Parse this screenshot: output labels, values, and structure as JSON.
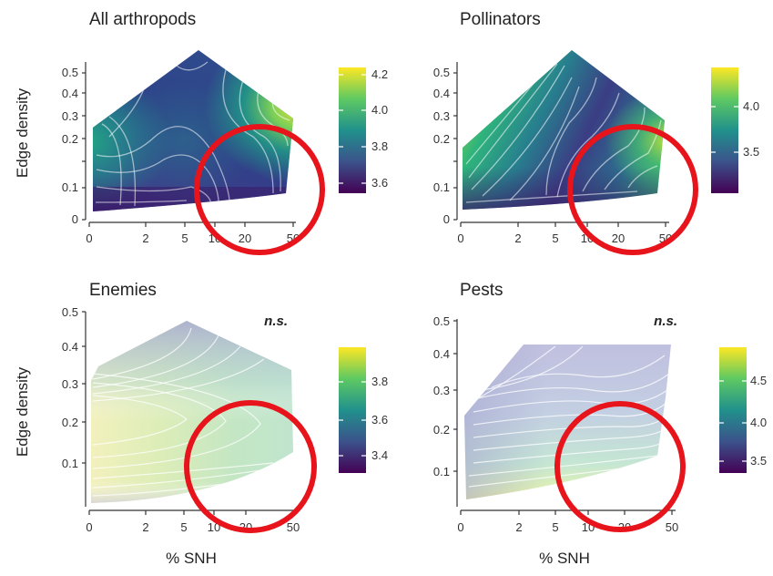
{
  "chart_data": [
    {
      "type": "contour",
      "title": "All arthropods",
      "xlabel": "",
      "ylabel": "Edge density",
      "x_ticks": [
        "0",
        "2",
        "5",
        "10",
        "20",
        "50"
      ],
      "y_ticks": [
        "0",
        "0.1",
        "0.2",
        "0.3",
        "0.4",
        "0.5"
      ],
      "colorbar": {
        "ticks": [
          "4.2",
          "4.0",
          "3.8",
          "3.6"
        ],
        "min": 3.55,
        "max": 4.25
      },
      "annotation": "",
      "grid": false,
      "highlight": "red circle around high % SNH, low edge density"
    },
    {
      "type": "contour",
      "title": "Pollinators",
      "xlabel": "",
      "ylabel": "",
      "x_ticks": [
        "0",
        "2",
        "5",
        "10",
        "20",
        "50"
      ],
      "y_ticks": [
        "0",
        "0.1",
        "0.2",
        "0.3",
        "0.4",
        "0.5"
      ],
      "colorbar": {
        "ticks": [
          "4.0",
          "3.5"
        ],
        "min": 3.0,
        "max": 4.4
      },
      "annotation": "",
      "grid": false,
      "highlight": "red circle around high % SNH, low edge density"
    },
    {
      "type": "contour",
      "title": "Enemies",
      "xlabel": "% SNH",
      "ylabel": "Edge density",
      "x_ticks": [
        "0",
        "2",
        "5",
        "10",
        "20",
        "50"
      ],
      "y_ticks": [
        "0.1",
        "0.2",
        "0.3",
        "0.4",
        "0.5"
      ],
      "colorbar": {
        "ticks": [
          "3.8",
          "3.6",
          "3.4"
        ],
        "min": 3.3,
        "max": 4.0
      },
      "annotation": "n.s.",
      "grid": false,
      "highlight": "red circle around high % SNH, low edge density"
    },
    {
      "type": "contour",
      "title": "Pests",
      "xlabel": "% SNH",
      "ylabel": "",
      "x_ticks": [
        "0",
        "2",
        "5",
        "10",
        "20",
        "50"
      ],
      "y_ticks": [
        "0.1",
        "0.2",
        "0.3",
        "0.4",
        "0.5"
      ],
      "colorbar": {
        "ticks": [
          "4.5",
          "4.0",
          "3.5"
        ],
        "min": 3.3,
        "max": 4.9
      },
      "annotation": "n.s.",
      "grid": false,
      "highlight": "red circle around high % SNH, low edge density"
    }
  ],
  "colors": {
    "viridis": [
      "#440154",
      "#3b528b",
      "#21918c",
      "#5ec962",
      "#fde725"
    ],
    "highlight": "#e8141c",
    "contour_line": "#ffffff"
  }
}
